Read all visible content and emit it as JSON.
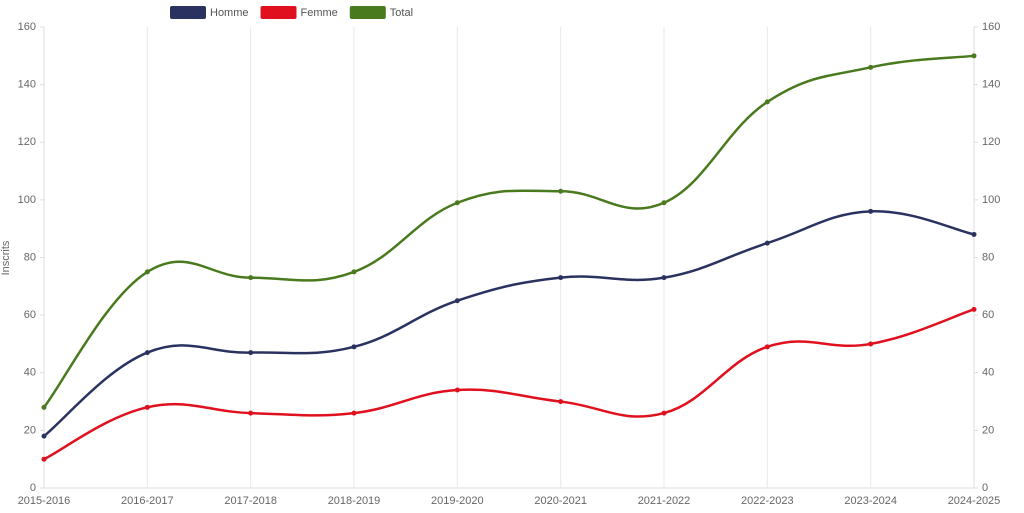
{
  "chart_data": {
    "type": "line",
    "y_label": "Inscrits",
    "categories": [
      "2015-2016",
      "2016-2017",
      "2017-2018",
      "2018-2019",
      "2019-2020",
      "2020-2021",
      "2021-2022",
      "2022-2023",
      "2023-2024",
      "2024-2025"
    ],
    "series": [
      {
        "name": "Homme",
        "color": "#2a3360",
        "values": [
          18,
          47,
          47,
          49,
          65,
          73,
          73,
          85,
          96,
          88
        ]
      },
      {
        "name": "Femme",
        "color": "#e0101e",
        "values": [
          10,
          28,
          26,
          26,
          34,
          30,
          26,
          49,
          50,
          62
        ]
      },
      {
        "name": "Total",
        "color": "#4a7a1e",
        "values": [
          28,
          75,
          73,
          75,
          99,
          103,
          99,
          134,
          146,
          150
        ]
      }
    ],
    "ylim": [
      0,
      160
    ],
    "yticks": [
      0,
      20,
      40,
      60,
      80,
      100,
      120,
      140,
      160
    ],
    "y2lim": [
      0,
      160
    ],
    "y2ticks": [
      0,
      20,
      40,
      60,
      80,
      100,
      120,
      140,
      160
    ],
    "grid": "x",
    "legend": "top",
    "smooth": true
  }
}
